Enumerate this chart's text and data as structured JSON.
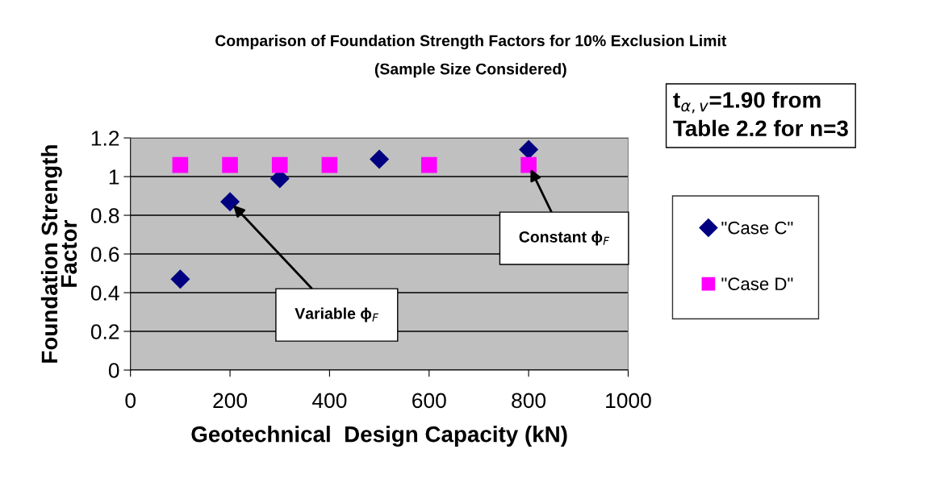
{
  "chart_data": {
    "type": "scatter",
    "title": "Comparison of Foundation Strength Factors for 10% Exclusion Limit",
    "subtitle": "(Sample Size Considered)",
    "xlabel": "Geotechnical  Design Capacity (kN)",
    "ylabel": "Foundation Strength\nFactor",
    "x": [
      100,
      200,
      300,
      400,
      500,
      600,
      800
    ],
    "series": [
      {
        "name": "\"Case C\"",
        "color": "#000080",
        "marker": "diamond",
        "values": [
          0.47,
          0.87,
          0.99,
          null,
          1.09,
          null,
          1.14
        ]
      },
      {
        "name": "\"Case D\"",
        "color": "#ff00ff",
        "marker": "square",
        "values": [
          1.06,
          1.06,
          1.06,
          1.06,
          null,
          1.06,
          1.06
        ]
      }
    ],
    "xlim": [
      0,
      1000
    ],
    "xticks": [
      0,
      200,
      400,
      600,
      800,
      1000
    ],
    "ylim": [
      0,
      1.2
    ],
    "yticks": [
      0,
      0.2,
      0.4,
      0.6,
      0.8,
      {
        "value": 1,
        "label": "1"
      },
      1.2
    ],
    "grid": "y",
    "legend": "right",
    "annotations": [
      {
        "text": "Variable ϕ$_{F}$",
        "x": 200,
        "y": 0.87
      },
      {
        "text": "Constant ϕ$_{F}$",
        "x": 800,
        "y": 1.06
      },
      "t$_{α,v}$=1.90 from\nTable 2.2 for n=3"
    ]
  }
}
